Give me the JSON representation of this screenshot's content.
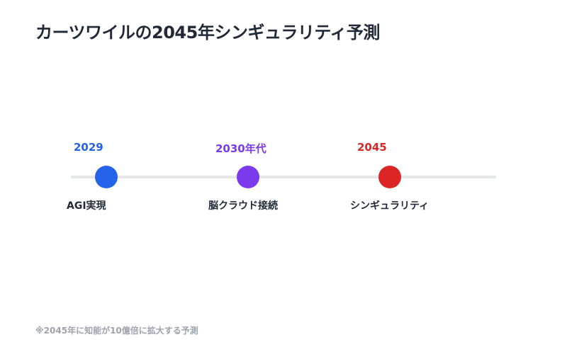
{
  "title": "カーツワイルの2045年シンギュラリティ予測",
  "milestones": [
    {
      "year": "2029",
      "label": "AGI実現",
      "color": "#2563eb"
    },
    {
      "year": "2030年代",
      "label": "脳クラウド接続",
      "color": "#7c3aed"
    },
    {
      "year": "2045",
      "label": "シンギュラリティ",
      "color": "#dc2626"
    }
  ],
  "footnote": "※2045年に知能が10億倍に拡大する予測"
}
